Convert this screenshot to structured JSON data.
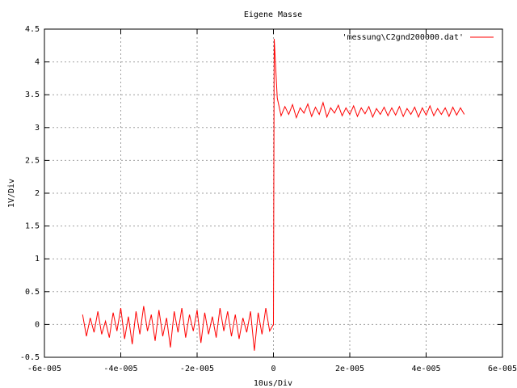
{
  "chart_data": {
    "type": "line",
    "title": "Eigene Masse",
    "x_label": "10us/Div",
    "y_label": "1V/Div",
    "xlim": [
      -6e-05,
      6e-05
    ],
    "ylim": [
      -0.5,
      4.5
    ],
    "xticks": [
      {
        "value": -6e-05,
        "label": "-6e-005"
      },
      {
        "value": -4e-05,
        "label": "-4e-005"
      },
      {
        "value": -2e-05,
        "label": "-2e-005"
      },
      0,
      {
        "value": 2e-05,
        "label": "2e-005"
      },
      {
        "value": 4e-05,
        "label": "4e-005"
      },
      {
        "value": 6e-05,
        "label": "6e-005"
      }
    ],
    "yticks": [
      -0.5,
      0,
      0.5,
      1,
      1.5,
      2,
      2.5,
      3,
      3.5,
      4,
      4.5
    ],
    "grid": true,
    "legend": "top-right",
    "series": [
      {
        "name": "'messung\\C2gnd200000.dat'",
        "color": "#ff0000",
        "x": [
          -5e-05,
          -4.9e-05,
          -4.8e-05,
          -4.7e-05,
          -4.6e-05,
          -4.5e-05,
          -4.4e-05,
          -4.3e-05,
          -4.2e-05,
          -4.1e-05,
          -4e-05,
          -3.9e-05,
          -3.8e-05,
          -3.7e-05,
          -3.6e-05,
          -3.5e-05,
          -3.4e-05,
          -3.3e-05,
          -3.2e-05,
          -3.1e-05,
          -3e-05,
          -2.9e-05,
          -2.8e-05,
          -2.7e-05,
          -2.6e-05,
          -2.5e-05,
          -2.4e-05,
          -2.3e-05,
          -2.2e-05,
          -2.1e-05,
          -2e-05,
          -1.9e-05,
          -1.8e-05,
          -1.7e-05,
          -1.6e-05,
          -1.5e-05,
          -1.4e-05,
          -1.3e-05,
          -1.2e-05,
          -1.1e-05,
          -1e-05,
          -9e-06,
          -8e-06,
          -7e-06,
          -6e-06,
          -5e-06,
          -4e-06,
          -3e-06,
          -2e-06,
          -1e-06,
          0,
          2e-07,
          1e-06,
          2e-06,
          3e-06,
          4e-06,
          5e-06,
          6e-06,
          7e-06,
          8e-06,
          9e-06,
          1e-05,
          1.1e-05,
          1.2e-05,
          1.3e-05,
          1.4e-05,
          1.5e-05,
          1.6e-05,
          1.7e-05,
          1.8e-05,
          1.9e-05,
          2e-05,
          2.1e-05,
          2.2e-05,
          2.3e-05,
          2.4e-05,
          2.5e-05,
          2.6e-05,
          2.7e-05,
          2.8e-05,
          2.9e-05,
          3e-05,
          3.1e-05,
          3.2e-05,
          3.3e-05,
          3.4e-05,
          3.5e-05,
          3.6e-05,
          3.7e-05,
          3.8e-05,
          3.9e-05,
          4e-05,
          4.1e-05,
          4.2e-05,
          4.3e-05,
          4.4e-05,
          4.5e-05,
          4.6e-05,
          4.7e-05,
          4.8e-05,
          4.9e-05,
          5e-05
        ],
        "values": [
          0.15,
          -0.18,
          0.1,
          -0.12,
          0.2,
          -0.15,
          0.05,
          -0.2,
          0.18,
          -0.1,
          0.25,
          -0.22,
          0.12,
          -0.3,
          0.2,
          -0.15,
          0.28,
          -0.1,
          0.15,
          -0.25,
          0.22,
          -0.18,
          0.1,
          -0.35,
          0.2,
          -0.12,
          0.25,
          -0.2,
          0.15,
          -0.1,
          0.22,
          -0.28,
          0.18,
          -0.15,
          0.12,
          -0.2,
          0.25,
          -0.1,
          0.2,
          -0.18,
          0.15,
          -0.22,
          0.1,
          -0.12,
          0.2,
          -0.4,
          0.18,
          -0.15,
          0.25,
          -0.1,
          0,
          4.35,
          3.45,
          3.18,
          3.32,
          3.2,
          3.35,
          3.15,
          3.3,
          3.22,
          3.36,
          3.17,
          3.31,
          3.2,
          3.38,
          3.16,
          3.3,
          3.22,
          3.34,
          3.18,
          3.3,
          3.2,
          3.33,
          3.17,
          3.3,
          3.21,
          3.32,
          3.16,
          3.29,
          3.2,
          3.31,
          3.18,
          3.3,
          3.19,
          3.32,
          3.17,
          3.29,
          3.2,
          3.31,
          3.16,
          3.3,
          3.19,
          3.33,
          3.18,
          3.29,
          3.2,
          3.3,
          3.17,
          3.31,
          3.19,
          3.3,
          3.2
        ]
      }
    ]
  }
}
